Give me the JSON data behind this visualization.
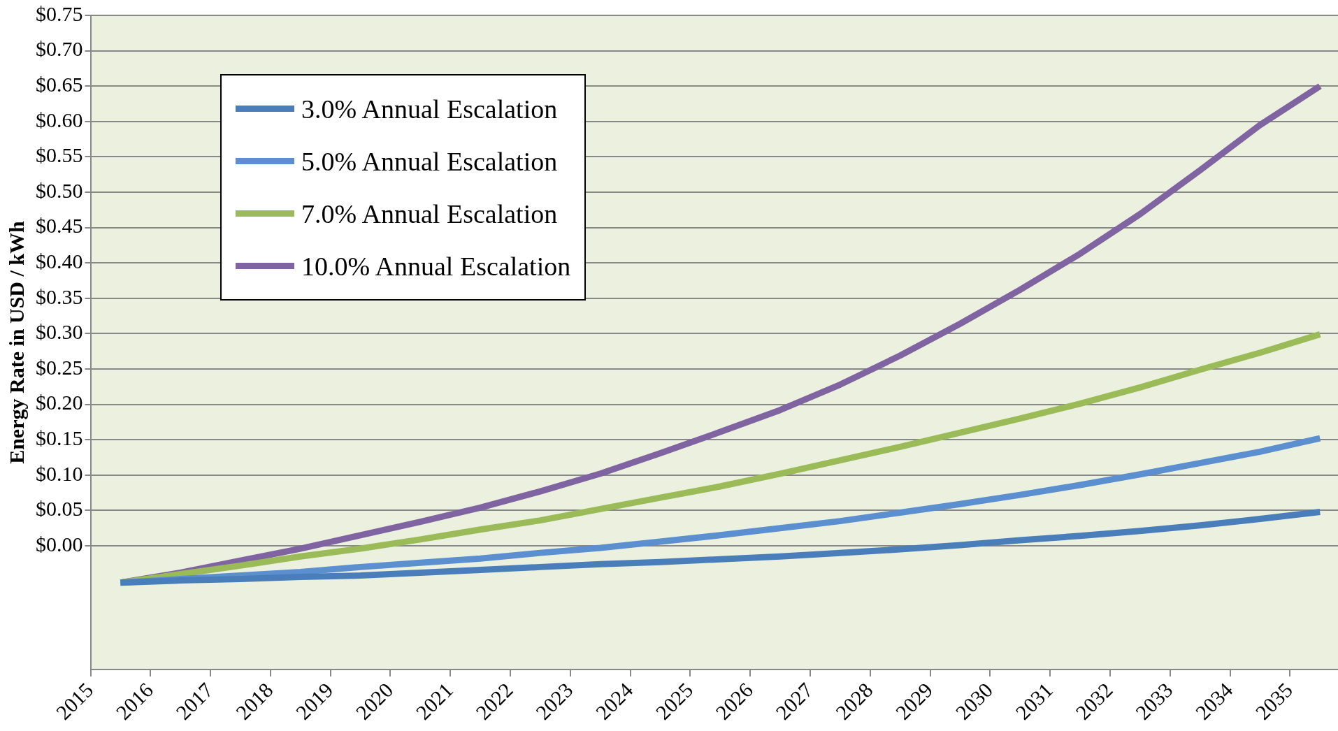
{
  "chart_data": {
    "type": "line",
    "ylabel": "Energy Rate in USD / kWh",
    "x": [
      2015.5,
      2016.5,
      2017.5,
      2018.5,
      2019.5,
      2020.5,
      2021.5,
      2022.5,
      2023.5,
      2024.5,
      2025.5,
      2026.5,
      2027.5,
      2028.5,
      2029.5,
      2030.5,
      2031.5,
      2032.5,
      2033.5,
      2034.5,
      2035.5
    ],
    "xlim": [
      2015,
      2035.8
    ],
    "xticks": [
      2015,
      2016,
      2017,
      2018,
      2019,
      2020,
      2021,
      2022,
      2023,
      2024,
      2025,
      2026,
      2027,
      2028,
      2029,
      2030,
      2031,
      2032,
      2033,
      2034,
      2035
    ],
    "ylim": [
      -0.175,
      0.75
    ],
    "yticks": [
      {
        "value": 0,
        "label": "$0.00"
      },
      {
        "value": 0.05,
        "label": "$0.05"
      },
      {
        "value": 0.1,
        "label": "$0.10"
      },
      {
        "value": 0.15,
        "label": "$0.15"
      },
      {
        "value": 0.2,
        "label": "$0.20"
      },
      {
        "value": 0.25,
        "label": "$0.25"
      },
      {
        "value": 0.3,
        "label": "$0.30"
      },
      {
        "value": 0.35,
        "label": "$0.35"
      },
      {
        "value": 0.4,
        "label": "$0.40"
      },
      {
        "value": 0.45,
        "label": "$0.45"
      },
      {
        "value": 0.5,
        "label": "$0.50"
      },
      {
        "value": 0.55,
        "label": "$0.55"
      },
      {
        "value": 0.6,
        "label": "$0.60"
      },
      {
        "value": 0.65,
        "label": "$0.65"
      },
      {
        "value": 0.7,
        "label": "$0.70"
      },
      {
        "value": 0.75,
        "label": "$0.75"
      }
    ],
    "grid": "y",
    "legend": "top left",
    "marker": "none",
    "line_style": "solid",
    "series": [
      {
        "name": "3.0% Annual Escalation",
        "color": "#4a7ebb",
        "values": [
          -0.052,
          -0.049,
          -0.047,
          -0.044,
          -0.042,
          -0.038,
          -0.034,
          -0.03,
          -0.026,
          -0.023,
          -0.019,
          -0.015,
          -0.01,
          -0.005,
          0.001,
          0.008,
          0.014,
          0.021,
          0.029,
          0.038,
          0.048
        ]
      },
      {
        "name": "5.0% Annual Escalation",
        "color": "#5b8fd0",
        "values": [
          -0.052,
          -0.047,
          -0.042,
          -0.037,
          -0.03,
          -0.024,
          -0.018,
          -0.01,
          -0.003,
          0.006,
          0.015,
          0.025,
          0.035,
          0.047,
          0.059,
          0.072,
          0.086,
          0.101,
          0.117,
          0.133,
          0.152
        ]
      },
      {
        "name": "7.0% Annual Escalation",
        "color": "#9bbb59",
        "values": [
          -0.052,
          -0.04,
          -0.028,
          -0.015,
          -0.004,
          0.009,
          0.023,
          0.036,
          0.052,
          0.068,
          0.084,
          0.102,
          0.121,
          0.14,
          0.16,
          0.18,
          0.201,
          0.224,
          0.249,
          0.273,
          0.299
        ]
      },
      {
        "name": "10.0% Annual Escalation",
        "color": "#8064a2",
        "values": [
          -0.052,
          -0.038,
          -0.021,
          -0.004,
          0.015,
          0.034,
          0.054,
          0.077,
          0.102,
          0.131,
          0.161,
          0.192,
          0.228,
          0.269,
          0.314,
          0.362,
          0.413,
          0.469,
          0.531,
          0.595,
          0.65
        ]
      }
    ]
  }
}
